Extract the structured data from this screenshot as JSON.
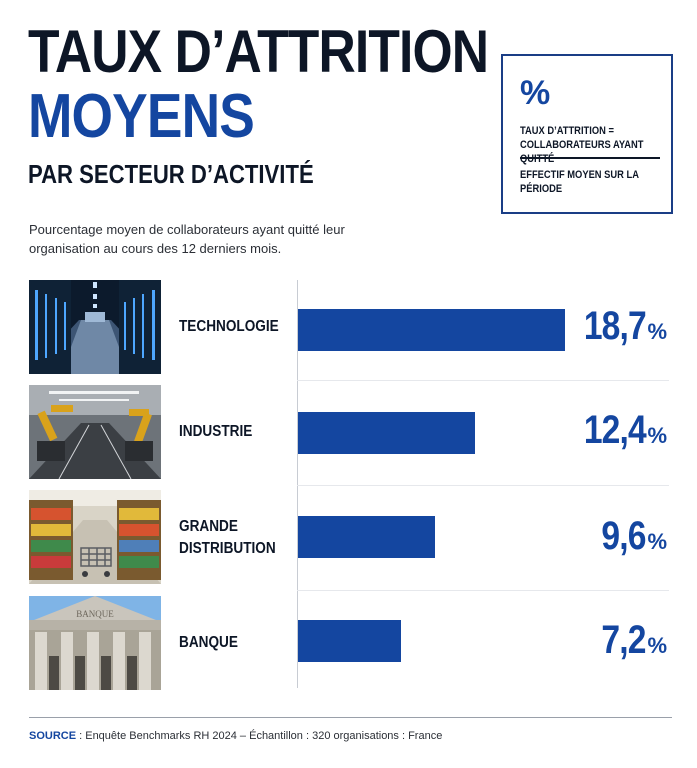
{
  "header": {
    "title_line1": "TAUX D’ATTRITION",
    "title_line2": "MOYENS",
    "title_line3": "PAR SECTEUR D’ACTIVITÉ"
  },
  "formula": {
    "symbol": "%",
    "numerator": "TAUX D’ATTRITION = COLLABORATEURS AYANT QUITTÉ",
    "denominator": "EFFECTIF MOYEN SUR LA PÉRIODE"
  },
  "subtitle": "Pourcentage moyen de collaborateurs ayant quitté leur organisation au cours des 12 derniers mois.",
  "colors": {
    "accent": "#1446a0",
    "text": "#0d1626"
  },
  "chart_data": {
    "type": "bar",
    "orientation": "horizontal",
    "categories": [
      "TECHNOLOGIE",
      "INDUSTRIE",
      "GRANDE DISTRIBUTION",
      "BANQUE"
    ],
    "values": [
      18.7,
      12.4,
      9.6,
      7.2
    ],
    "value_labels": [
      "18,7",
      "12,4",
      "9,6",
      "7,2"
    ],
    "unit": "%",
    "xlim": [
      0,
      22.6
    ],
    "category_images": [
      "server-room-photo",
      "factory-robots-photo",
      "supermarket-aisle-photo",
      "bank-facade-photo"
    ]
  },
  "footer": {
    "source_label": "SOURCE",
    "source_text": " : Enquête Benchmarks RH 2024 – Échantillon : 320 organisations : France"
  }
}
